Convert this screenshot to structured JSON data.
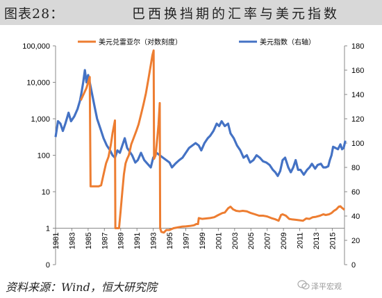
{
  "header": {
    "figure_label": "图表28：",
    "title": "巴西换挡期的汇率与美元指数"
  },
  "source": "资料来源：Wind，恒大研究院",
  "watermark": "泽平宏观",
  "colors": {
    "brl": "#ed7d31",
    "dxy": "#4472c4",
    "header_bg": "#d8d8d8"
  },
  "chart_data": {
    "type": "line",
    "x": {
      "tick_labels": [
        "1981",
        "1983",
        "1985",
        "1987",
        "1989",
        "1991",
        "1993",
        "1995",
        "1997",
        "1999",
        "2001",
        "2003",
        "2005",
        "2007",
        "2009",
        "2011",
        "2013",
        "2015"
      ],
      "range": [
        1981,
        2016.5
      ]
    },
    "y_left": {
      "scale": "log",
      "range": [
        0,
        100000
      ],
      "tick_labels": [
        "0",
        "1",
        "10",
        "100",
        "1,000",
        "10,000",
        "100,000"
      ]
    },
    "y_right": {
      "scale": "linear",
      "range": [
        0,
        180
      ],
      "tick_labels": [
        "0",
        "20",
        "40",
        "60",
        "80",
        "100",
        "120",
        "140",
        "160",
        "180"
      ]
    },
    "legend_position": "top",
    "series": [
      {
        "name": "美元兑雷亚尔（对数刻度）",
        "axis": "left",
        "color": "#ed7d31",
        "points": [
          [
            1984.1,
            3200
          ],
          [
            1984.5,
            5000
          ],
          [
            1984.8,
            7000
          ],
          [
            1985.2,
            14000
          ],
          [
            1985.3,
            14
          ],
          [
            1986.3,
            14
          ],
          [
            1986.6,
            15
          ],
          [
            1986.9,
            30
          ],
          [
            1987.2,
            60
          ],
          [
            1987.5,
            90
          ],
          [
            1987.8,
            200
          ],
          [
            1988.0,
            400
          ],
          [
            1988.3,
            900
          ],
          [
            1988.35,
            1
          ],
          [
            1988.8,
            1
          ],
          [
            1989.0,
            3
          ],
          [
            1989.2,
            10
          ],
          [
            1989.4,
            30
          ],
          [
            1989.6,
            60
          ],
          [
            1989.8,
            80
          ],
          [
            1990.0,
            100
          ],
          [
            1990.3,
            200
          ],
          [
            1990.6,
            300
          ],
          [
            1990.9,
            450
          ],
          [
            1991.2,
            700
          ],
          [
            1991.5,
            1300
          ],
          [
            1991.8,
            2500
          ],
          [
            1992.1,
            5000
          ],
          [
            1992.4,
            12000
          ],
          [
            1992.7,
            30000
          ],
          [
            1992.9,
            55000
          ],
          [
            1993.05,
            75000
          ],
          [
            1993.1,
            80
          ],
          [
            1993.3,
            100
          ],
          [
            1993.5,
            300
          ],
          [
            1993.65,
            700
          ],
          [
            1993.8,
            2700
          ],
          [
            1993.85,
            1
          ],
          [
            1994.0,
            0.9
          ],
          [
            1994.3,
            0.88
          ],
          [
            1994.6,
            0.95
          ],
          [
            1995.0,
            0.95
          ],
          [
            1995.5,
            1.0
          ],
          [
            1996.0,
            1.05
          ],
          [
            1996.5,
            1.1
          ],
          [
            1997.0,
            1.12
          ],
          [
            1997.5,
            1.15
          ],
          [
            1998.0,
            1.2
          ],
          [
            1998.3,
            1.3
          ],
          [
            1998.5,
            1.3
          ],
          [
            1998.6,
            1.9
          ],
          [
            1999.0,
            1.8
          ],
          [
            1999.5,
            1.85
          ],
          [
            2000.0,
            1.9
          ],
          [
            2000.5,
            2.0
          ],
          [
            2001.0,
            2.3
          ],
          [
            2001.5,
            2.6
          ],
          [
            2001.8,
            2.7
          ],
          [
            2002.2,
            3.5
          ],
          [
            2002.5,
            3.9
          ],
          [
            2002.8,
            3.3
          ],
          [
            2003.2,
            3.0
          ],
          [
            2003.6,
            2.9
          ],
          [
            2004.0,
            3.0
          ],
          [
            2004.5,
            2.9
          ],
          [
            2005.0,
            2.6
          ],
          [
            2005.5,
            2.4
          ],
          [
            2006.0,
            2.2
          ],
          [
            2006.5,
            2.2
          ],
          [
            2007.0,
            2.1
          ],
          [
            2007.5,
            1.9
          ],
          [
            2008.0,
            1.75
          ],
          [
            2008.4,
            1.6
          ],
          [
            2008.7,
            2.3
          ],
          [
            2008.9,
            2.4
          ],
          [
            2009.3,
            2.2
          ],
          [
            2009.7,
            1.8
          ],
          [
            2010.0,
            1.75
          ],
          [
            2010.5,
            1.7
          ],
          [
            2011.0,
            1.65
          ],
          [
            2011.4,
            1.6
          ],
          [
            2011.8,
            1.85
          ],
          [
            2012.2,
            1.8
          ],
          [
            2012.6,
            2.0
          ],
          [
            2013.0,
            2.05
          ],
          [
            2013.5,
            2.2
          ],
          [
            2013.9,
            2.4
          ],
          [
            2014.2,
            2.3
          ],
          [
            2014.6,
            2.4
          ],
          [
            2014.9,
            2.6
          ],
          [
            2015.2,
            3.0
          ],
          [
            2015.5,
            3.3
          ],
          [
            2015.8,
            3.9
          ],
          [
            2016.0,
            4.0
          ],
          [
            2016.2,
            3.6
          ],
          [
            2016.5,
            3.2
          ]
        ]
      },
      {
        "name": "美元指数（右轴）",
        "axis": "right",
        "color": "#4472c4",
        "points": [
          [
            1981.0,
            105
          ],
          [
            1981.3,
            118
          ],
          [
            1981.6,
            116
          ],
          [
            1981.9,
            110
          ],
          [
            1982.2,
            116
          ],
          [
            1982.6,
            125
          ],
          [
            1982.9,
            118
          ],
          [
            1983.3,
            122
          ],
          [
            1983.7,
            128
          ],
          [
            1984.0,
            135
          ],
          [
            1984.2,
            142
          ],
          [
            1984.4,
            150
          ],
          [
            1984.6,
            160
          ],
          [
            1984.8,
            150
          ],
          [
            1985.0,
            156
          ],
          [
            1985.2,
            150
          ],
          [
            1985.5,
            140
          ],
          [
            1985.8,
            130
          ],
          [
            1986.1,
            120
          ],
          [
            1986.5,
            112
          ],
          [
            1986.9,
            104
          ],
          [
            1987.3,
            98
          ],
          [
            1987.7,
            94
          ],
          [
            1988.0,
            90
          ],
          [
            1988.3,
            88
          ],
          [
            1988.6,
            94
          ],
          [
            1988.9,
            92
          ],
          [
            1989.2,
            98
          ],
          [
            1989.5,
            104
          ],
          [
            1989.8,
            96
          ],
          [
            1990.0,
            94
          ],
          [
            1990.4,
            90
          ],
          [
            1990.8,
            84
          ],
          [
            1991.1,
            86
          ],
          [
            1991.5,
            92
          ],
          [
            1991.9,
            86
          ],
          [
            1992.3,
            83
          ],
          [
            1992.7,
            80
          ],
          [
            1993.0,
            88
          ],
          [
            1993.4,
            92
          ],
          [
            1993.8,
            90
          ],
          [
            1994.2,
            88
          ],
          [
            1994.6,
            86
          ],
          [
            1995.0,
            84
          ],
          [
            1995.3,
            80
          ],
          [
            1995.7,
            83
          ],
          [
            1996.2,
            86
          ],
          [
            1996.6,
            88
          ],
          [
            1997.0,
            92
          ],
          [
            1997.4,
            96
          ],
          [
            1997.8,
            98
          ],
          [
            1998.2,
            100
          ],
          [
            1998.6,
            98
          ],
          [
            1998.9,
            94
          ],
          [
            1999.3,
            100
          ],
          [
            1999.7,
            104
          ],
          [
            2000.0,
            106
          ],
          [
            2000.4,
            110
          ],
          [
            2000.8,
            116
          ],
          [
            2001.1,
            114
          ],
          [
            2001.4,
            118
          ],
          [
            2001.8,
            114
          ],
          [
            2002.2,
            116
          ],
          [
            2002.5,
            108
          ],
          [
            2002.9,
            104
          ],
          [
            2003.3,
            98
          ],
          [
            2003.7,
            94
          ],
          [
            2004.1,
            88
          ],
          [
            2004.5,
            90
          ],
          [
            2004.9,
            84
          ],
          [
            2005.3,
            86
          ],
          [
            2005.7,
            90
          ],
          [
            2006.1,
            88
          ],
          [
            2006.5,
            85
          ],
          [
            2006.9,
            84
          ],
          [
            2007.3,
            82
          ],
          [
            2007.7,
            78
          ],
          [
            2008.0,
            76
          ],
          [
            2008.3,
            73
          ],
          [
            2008.6,
            77
          ],
          [
            2008.9,
            86
          ],
          [
            2009.2,
            88
          ],
          [
            2009.6,
            80
          ],
          [
            2009.9,
            76
          ],
          [
            2010.2,
            80
          ],
          [
            2010.5,
            86
          ],
          [
            2010.8,
            78
          ],
          [
            2011.1,
            78
          ],
          [
            2011.5,
            74
          ],
          [
            2011.9,
            78
          ],
          [
            2012.2,
            80
          ],
          [
            2012.5,
            83
          ],
          [
            2012.9,
            79
          ],
          [
            2013.2,
            82
          ],
          [
            2013.6,
            83
          ],
          [
            2013.9,
            80
          ],
          [
            2014.2,
            80
          ],
          [
            2014.5,
            81
          ],
          [
            2014.7,
            86
          ],
          [
            2014.9,
            90
          ],
          [
            2015.1,
            97
          ],
          [
            2015.4,
            96
          ],
          [
            2015.7,
            95
          ],
          [
            2016.0,
            99
          ],
          [
            2016.2,
            95
          ],
          [
            2016.4,
            96
          ],
          [
            2016.6,
            102
          ]
        ]
      }
    ]
  }
}
